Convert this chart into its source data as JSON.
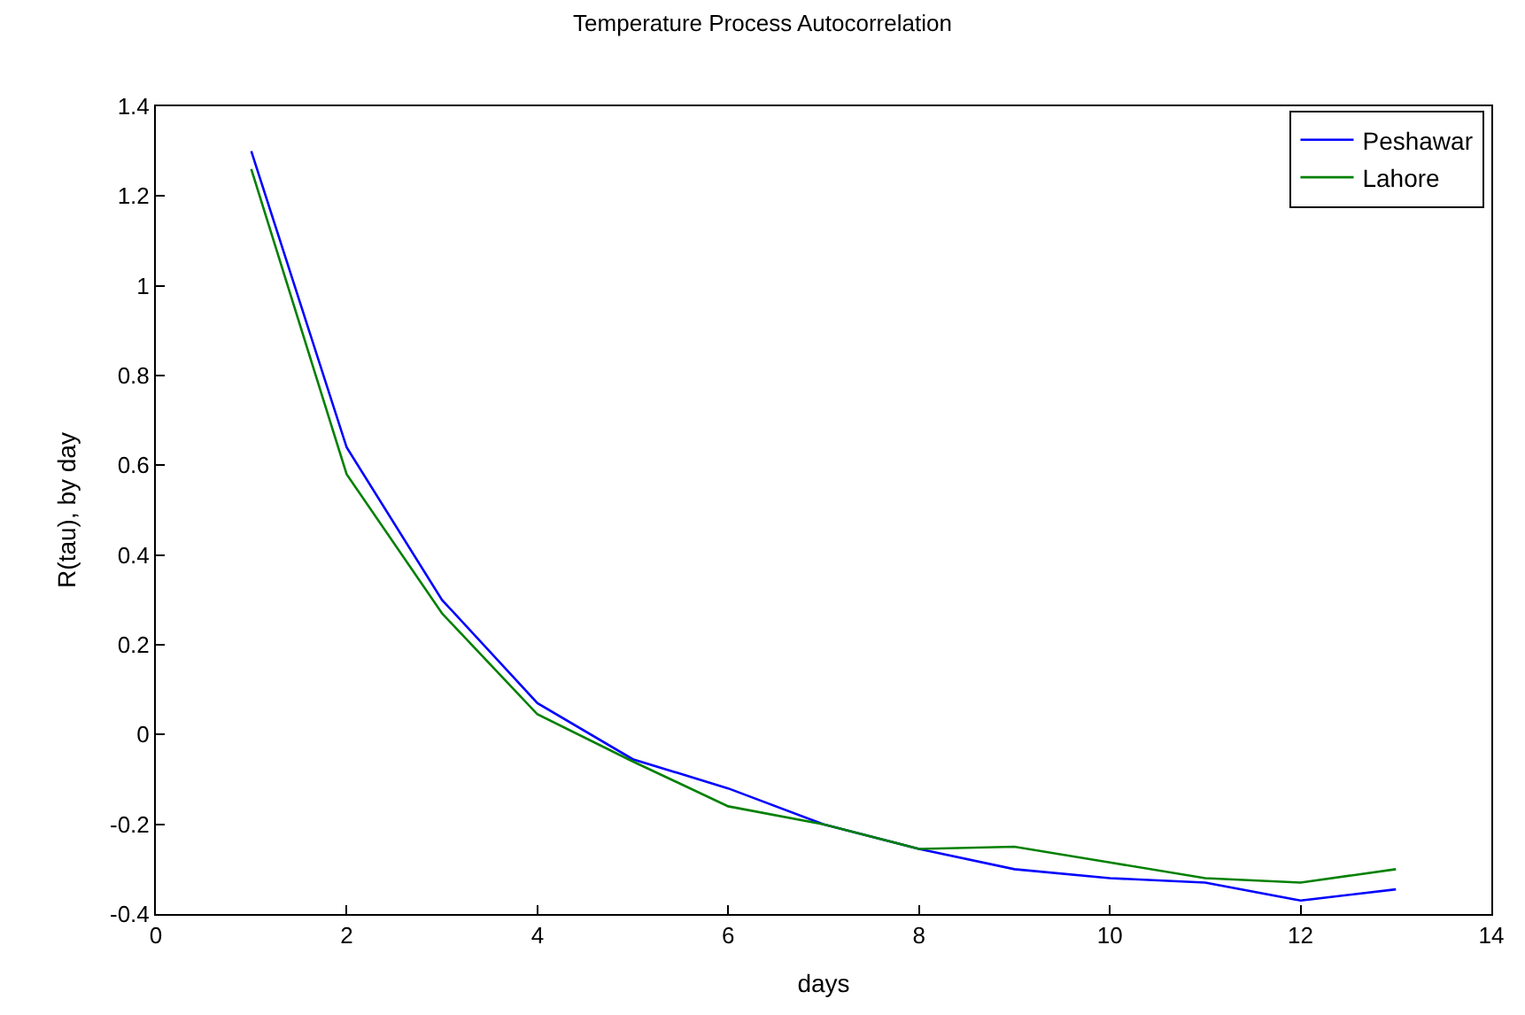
{
  "chart_data": {
    "type": "line",
    "title": "Temperature Process Autocorrelation",
    "xlabel": "days",
    "ylabel": "R(tau), by day",
    "x": [
      1,
      2,
      3,
      4,
      5,
      6,
      7,
      8,
      9,
      10,
      11,
      12,
      13
    ],
    "series": [
      {
        "name": "Peshawar",
        "color": "#0000ff",
        "values": [
          1.3,
          0.64,
          0.3,
          0.07,
          -0.055,
          -0.12,
          -0.2,
          -0.255,
          -0.3,
          -0.32,
          -0.33,
          -0.37,
          -0.345
        ]
      },
      {
        "name": "Lahore",
        "color": "#008000",
        "values": [
          1.26,
          0.58,
          0.27,
          0.045,
          -0.06,
          -0.16,
          -0.2,
          -0.255,
          -0.25,
          -0.285,
          -0.32,
          -0.33,
          -0.3
        ]
      }
    ],
    "xlim": [
      0,
      14
    ],
    "xticks": [
      0,
      2,
      4,
      6,
      8,
      10,
      12,
      14
    ],
    "ylim": [
      -0.4,
      1.4
    ],
    "yticks": [
      -0.4,
      -0.2,
      0,
      0.2,
      0.4,
      0.6,
      0.8,
      1,
      1.2,
      1.4
    ],
    "legend": "top right",
    "marker": "none",
    "line_style": "solid"
  }
}
